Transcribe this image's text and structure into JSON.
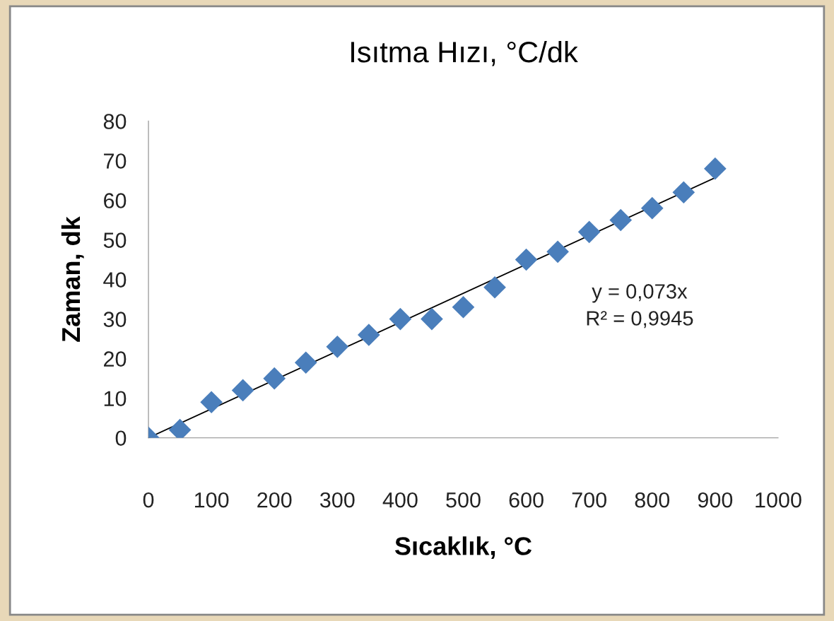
{
  "chart_data": {
    "type": "scatter",
    "title": "Isıtma Hızı, °C/dk",
    "xlabel": "Sıcaklık, °C",
    "ylabel": "Zaman, dk",
    "xlim": [
      0,
      1000
    ],
    "xticks": [
      0,
      100,
      200,
      300,
      400,
      500,
      600,
      700,
      800,
      900,
      1000
    ],
    "ylim": [
      0,
      80
    ],
    "yticks": [
      0,
      10,
      20,
      30,
      40,
      50,
      60,
      70,
      80
    ],
    "grid": false,
    "series": [
      {
        "marker": "diamond",
        "color": "#4a7ebb",
        "x": [
          0,
          50,
          100,
          150,
          200,
          250,
          300,
          350,
          400,
          450,
          500,
          550,
          600,
          650,
          700,
          750,
          800,
          850,
          900
        ],
        "values": [
          0,
          2,
          9,
          12,
          15,
          19,
          23,
          26,
          30,
          30,
          33,
          38,
          45,
          47,
          52,
          55,
          58,
          62,
          68
        ]
      },
      {
        "type": "line",
        "marker": "none",
        "color": "#000000",
        "line_style": "solid",
        "x": [
          0,
          900
        ],
        "values": [
          0,
          65.7
        ]
      }
    ],
    "annotations": [
      "y = 0,073x",
      "R² = 0,9945"
    ]
  }
}
